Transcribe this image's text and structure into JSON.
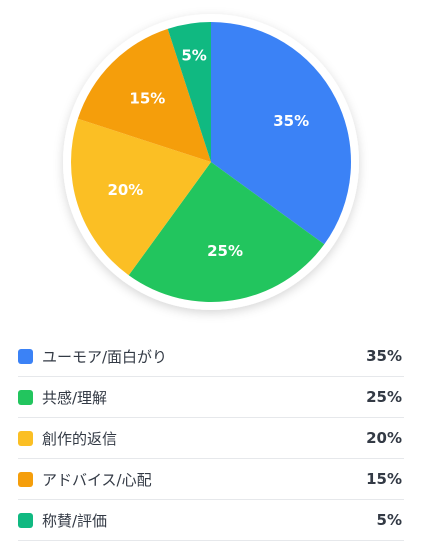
{
  "chart_data": {
    "type": "pie",
    "categories": [
      "ユーモア/面白がり",
      "共感/理解",
      "創作的返信",
      "アドバイス/心配",
      "称賛/評価"
    ],
    "values": [
      35,
      25,
      20,
      15,
      5
    ],
    "labels": [
      "35%",
      "25%",
      "20%",
      "15%",
      "5%"
    ],
    "colors": [
      "#3b82f6",
      "#22c55e",
      "#fbbf24",
      "#f59e0b",
      "#10b981"
    ],
    "legend_position": "bottom",
    "start_angle": "top, clockwise"
  },
  "legend": {
    "items": [
      {
        "label": "ユーモア/面白がり",
        "value": "35%",
        "color": "#3b82f6"
      },
      {
        "label": "共感/理解",
        "value": "25%",
        "color": "#22c55e"
      },
      {
        "label": "創作的返信",
        "value": "20%",
        "color": "#fbbf24"
      },
      {
        "label": "アドバイス/心配",
        "value": "15%",
        "color": "#f59e0b"
      },
      {
        "label": "称賛/評価",
        "value": "5%",
        "color": "#10b981"
      }
    ]
  }
}
